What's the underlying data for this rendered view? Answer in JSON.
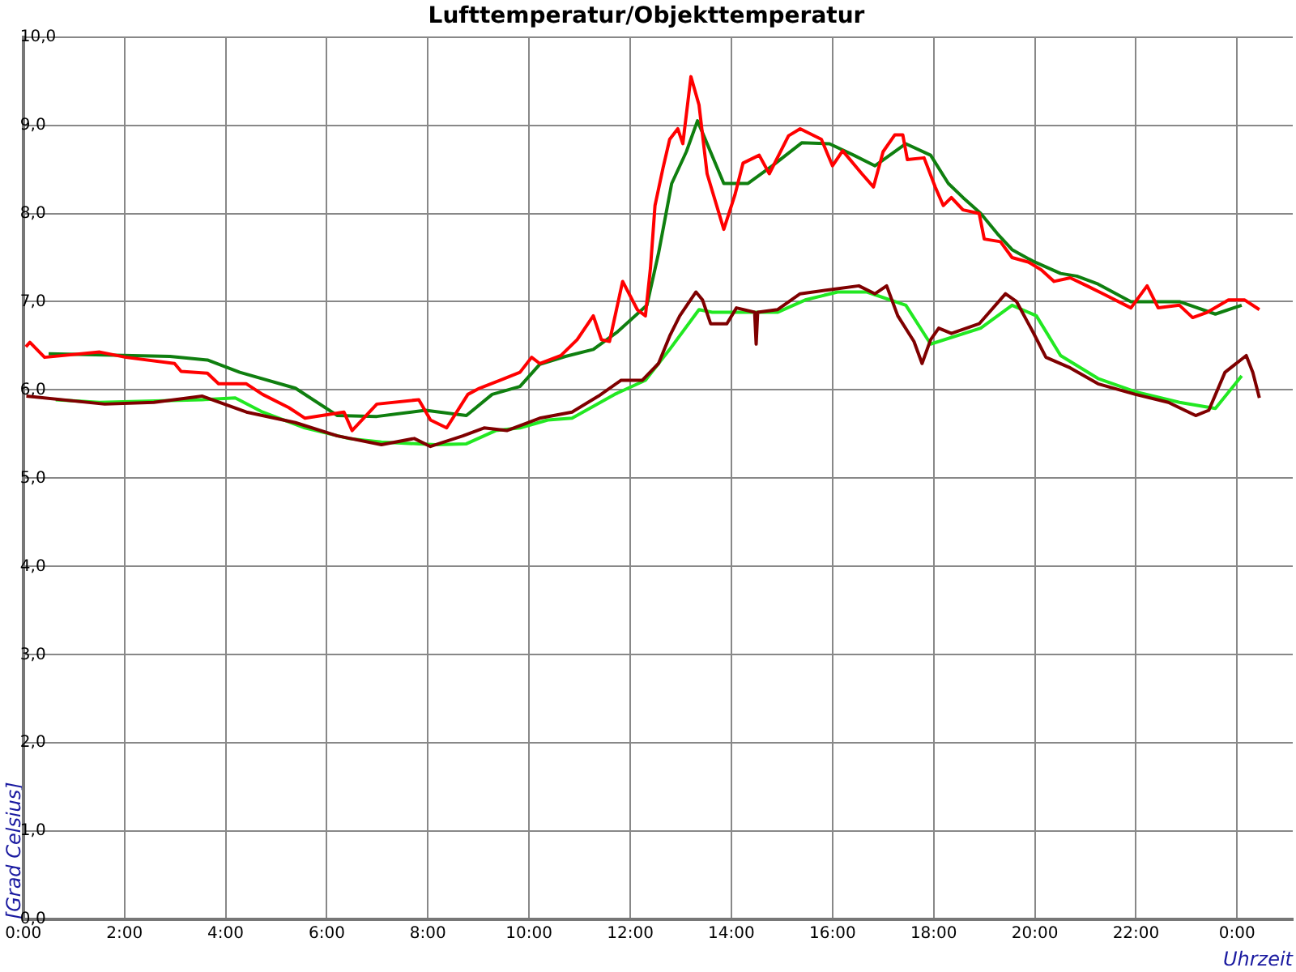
{
  "chart_data": {
    "type": "line",
    "title": "Lufttemperatur/Objekttemperatur",
    "xlabel": "Uhrzeit",
    "ylabel": "[Grad Celsius]",
    "grid": true,
    "legend": false,
    "marker": "none",
    "line_style": "solid",
    "xlim": [
      0,
      25.1
    ],
    "xticks": [
      {
        "value": 0,
        "label": "0:00"
      },
      {
        "value": 2,
        "label": "2:00"
      },
      {
        "value": 4,
        "label": "4:00"
      },
      {
        "value": 6,
        "label": "6:00"
      },
      {
        "value": 8,
        "label": "8:00"
      },
      {
        "value": 10,
        "label": "10:00"
      },
      {
        "value": 12,
        "label": "12:00"
      },
      {
        "value": 14,
        "label": "14:00"
      },
      {
        "value": 16,
        "label": "16:00"
      },
      {
        "value": 18,
        "label": "18:00"
      },
      {
        "value": 20,
        "label": "20:00"
      },
      {
        "value": 22,
        "label": "22:00"
      },
      {
        "value": 24,
        "label": "0:00"
      }
    ],
    "ylim": [
      0,
      10
    ],
    "yticks": [
      {
        "value": 0,
        "label": "0,0"
      },
      {
        "value": 1,
        "label": "1,0"
      },
      {
        "value": 2,
        "label": "2,0"
      },
      {
        "value": 3,
        "label": "3,0"
      },
      {
        "value": 4,
        "label": "4,0"
      },
      {
        "value": 5,
        "label": "5,0"
      },
      {
        "value": 6,
        "label": "6,0"
      },
      {
        "value": 7,
        "label": "7,0"
      },
      {
        "value": 8,
        "label": "8,0"
      },
      {
        "value": 9,
        "label": "9,0"
      },
      {
        "value": 10,
        "label": "10,0"
      }
    ],
    "series": [
      {
        "color": "#ff0000",
        "x": [
          0.05,
          0.13,
          0.42,
          1.51,
          2.03,
          2.99,
          3.12,
          3.64,
          3.86,
          4.41,
          4.73,
          5.25,
          5.57,
          6.34,
          6.5,
          6.99,
          7.82,
          8.05,
          8.37,
          8.79,
          9.02,
          9.43,
          9.82,
          10.05,
          10.21,
          10.63,
          10.95,
          11.27,
          11.43,
          11.59,
          11.85,
          12.14,
          12.3,
          12.4,
          12.49,
          12.65,
          12.78,
          12.94,
          13.04,
          13.2,
          13.36,
          13.52,
          13.85,
          14.07,
          14.23,
          14.55,
          14.75,
          15.13,
          15.36,
          15.78,
          16.0,
          16.2,
          16.58,
          16.81,
          17.0,
          17.23,
          17.39,
          17.48,
          17.81,
          18.03,
          18.19,
          18.35,
          18.58,
          18.9,
          19.0,
          19.32,
          19.55,
          19.87,
          20.13,
          20.38,
          20.7,
          21.03,
          21.35,
          21.9,
          22.22,
          22.44,
          22.86,
          23.12,
          23.41,
          23.83,
          24.15,
          24.44
        ],
        "values": [
          6.49,
          6.54,
          6.37,
          6.43,
          6.37,
          6.3,
          6.21,
          6.19,
          6.07,
          6.07,
          5.95,
          5.8,
          5.68,
          5.75,
          5.54,
          5.84,
          5.89,
          5.66,
          5.57,
          5.95,
          6.02,
          6.11,
          6.2,
          6.37,
          6.3,
          6.39,
          6.57,
          6.84,
          6.57,
          6.55,
          7.23,
          6.91,
          6.84,
          7.38,
          8.09,
          8.52,
          8.84,
          8.96,
          8.79,
          9.55,
          9.23,
          8.45,
          7.82,
          8.21,
          8.57,
          8.66,
          8.45,
          8.88,
          8.96,
          8.84,
          8.54,
          8.71,
          8.45,
          8.3,
          8.7,
          8.89,
          8.89,
          8.61,
          8.63,
          8.3,
          8.09,
          8.18,
          8.04,
          8.0,
          7.71,
          7.68,
          7.5,
          7.45,
          7.36,
          7.23,
          7.27,
          7.18,
          7.09,
          6.93,
          7.18,
          6.93,
          6.96,
          6.82,
          6.88,
          7.02,
          7.02,
          6.91
        ]
      },
      {
        "color": "#0f7f0f",
        "x": [
          0.5,
          2.9,
          3.64,
          4.28,
          5.38,
          6.21,
          6.99,
          7.95,
          8.76,
          9.27,
          9.82,
          10.21,
          10.72,
          11.27,
          11.75,
          12.33,
          12.56,
          12.82,
          13.11,
          13.33,
          13.85,
          14.33,
          14.81,
          15.39,
          15.94,
          16.42,
          16.84,
          17.45,
          17.94,
          18.29,
          18.58,
          18.93,
          19.26,
          19.55,
          19.96,
          20.51,
          20.83,
          21.25,
          21.9,
          22.86,
          23.57,
          24.09
        ],
        "values": [
          6.41,
          6.38,
          6.34,
          6.2,
          6.02,
          5.71,
          5.7,
          5.77,
          5.71,
          5.95,
          6.04,
          6.29,
          6.38,
          6.46,
          6.66,
          6.96,
          7.55,
          8.34,
          8.7,
          9.05,
          8.34,
          8.34,
          8.54,
          8.8,
          8.79,
          8.66,
          8.54,
          8.79,
          8.66,
          8.34,
          8.18,
          8.0,
          7.77,
          7.59,
          7.46,
          7.32,
          7.29,
          7.2,
          7.0,
          7.0,
          6.86,
          6.96
        ]
      },
      {
        "color": "#7f0000",
        "x": [
          0.06,
          1.61,
          2.58,
          3.54,
          4.41,
          5.38,
          6.21,
          7.08,
          7.73,
          8.05,
          8.69,
          9.11,
          9.56,
          10.21,
          10.85,
          11.37,
          11.82,
          12.24,
          12.56,
          12.78,
          12.98,
          13.3,
          13.43,
          13.59,
          13.91,
          14.1,
          14.46,
          14.49,
          14.52,
          14.91,
          15.36,
          16.0,
          16.52,
          16.84,
          17.07,
          17.29,
          17.61,
          17.77,
          17.94,
          18.1,
          18.35,
          18.9,
          19.42,
          19.64,
          19.96,
          20.22,
          20.7,
          21.25,
          21.99,
          22.64,
          23.18,
          23.44,
          23.76,
          24.18,
          24.31,
          24.44
        ],
        "values": [
          5.93,
          5.84,
          5.86,
          5.93,
          5.75,
          5.63,
          5.48,
          5.38,
          5.45,
          5.36,
          5.48,
          5.57,
          5.54,
          5.68,
          5.75,
          5.93,
          6.11,
          6.11,
          6.3,
          6.61,
          6.84,
          7.11,
          7.02,
          6.75,
          6.75,
          6.93,
          6.88,
          6.52,
          6.88,
          6.91,
          7.09,
          7.14,
          7.18,
          7.09,
          7.18,
          6.84,
          6.55,
          6.3,
          6.57,
          6.7,
          6.64,
          6.75,
          7.09,
          7.0,
          6.66,
          6.37,
          6.25,
          6.07,
          5.95,
          5.86,
          5.71,
          5.77,
          6.2,
          6.39,
          6.2,
          5.91
        ]
      },
      {
        "color": "#22e822",
        "x": [
          0.64,
          1.51,
          3.54,
          4.19,
          4.73,
          5.57,
          6.44,
          7.08,
          8.15,
          8.76,
          9.34,
          9.82,
          10.37,
          10.85,
          11.69,
          12.3,
          12.78,
          13.36,
          13.62,
          14.91,
          15.46,
          16.1,
          16.68,
          17.45,
          17.94,
          18.93,
          19.55,
          20.03,
          20.51,
          21.25,
          21.99,
          22.86,
          23.57,
          24.09
        ],
        "values": [
          5.89,
          5.86,
          5.89,
          5.91,
          5.75,
          5.57,
          5.45,
          5.41,
          5.38,
          5.39,
          5.54,
          5.57,
          5.66,
          5.68,
          5.95,
          6.11,
          6.46,
          6.91,
          6.88,
          6.88,
          7.02,
          7.11,
          7.11,
          6.96,
          6.52,
          6.7,
          6.96,
          6.84,
          6.39,
          6.13,
          5.98,
          5.86,
          5.79,
          6.16
        ]
      }
    ]
  }
}
